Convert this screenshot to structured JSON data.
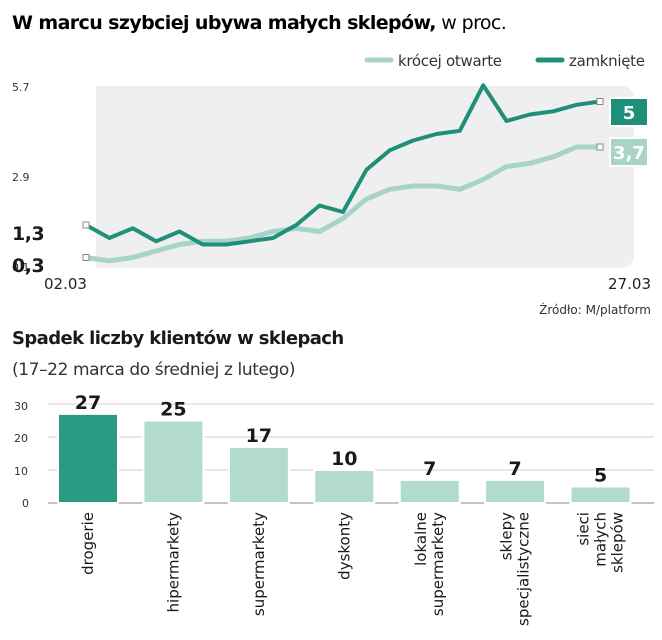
{
  "colors": {
    "closed": "#1f8f79",
    "shorter": "#a8d4c5",
    "bg_band": "#efefef",
    "bar_highlight": "#2a9a82",
    "bar_default": "#b3dbcd"
  },
  "chart_data": [
    {
      "type": "line",
      "title_bold": "W marcu szybciej ubywa małych sklepów,",
      "title_rest": " w proc.",
      "ylim": [
        0.1,
        5.7
      ],
      "y_ticks": [
        "5.7",
        "2.9",
        "0.1"
      ],
      "x_start_label": "02.03",
      "x_end_label": "27.03",
      "series": [
        {
          "name": "krócej otwarte",
          "start_label": "0,3",
          "end_label": "3,7",
          "values": [
            0.3,
            0.2,
            0.3,
            0.5,
            0.7,
            0.8,
            0.8,
            0.9,
            1.1,
            1.2,
            1.1,
            1.5,
            2.1,
            2.4,
            2.5,
            2.5,
            2.4,
            2.7,
            3.1,
            3.2,
            3.4,
            3.7,
            3.7
          ]
        },
        {
          "name": "zamknięte",
          "start_label": "1,3",
          "end_label": "5",
          "values": [
            1.3,
            0.9,
            1.2,
            0.8,
            1.1,
            0.7,
            0.7,
            0.8,
            0.9,
            1.3,
            1.9,
            1.7,
            3.0,
            3.6,
            3.9,
            4.1,
            4.2,
            5.6,
            4.5,
            4.7,
            4.8,
            5.0,
            5.1
          ]
        }
      ],
      "source": "Źródło: M/platform"
    },
    {
      "type": "bar",
      "title": "Spadek liczby klientów w sklepach",
      "subtitle": "(17–22 marca do średniej z lutego)",
      "ylim": [
        0,
        30
      ],
      "y_ticks": [
        "30",
        "20",
        "10",
        "0"
      ],
      "categories": [
        [
          "drogerie"
        ],
        [
          "hipermarkety"
        ],
        [
          "supermarkety"
        ],
        [
          "dyskonty"
        ],
        [
          "lokalne",
          "supermarkety"
        ],
        [
          "sklepy",
          "specjalistyczne"
        ],
        [
          "sieci",
          "małych",
          "sklepów"
        ]
      ],
      "values": [
        27,
        25,
        17,
        10,
        7,
        7,
        5
      ],
      "value_labels": [
        "27",
        "25",
        "17",
        "10",
        "7",
        "7",
        "5"
      ]
    }
  ]
}
